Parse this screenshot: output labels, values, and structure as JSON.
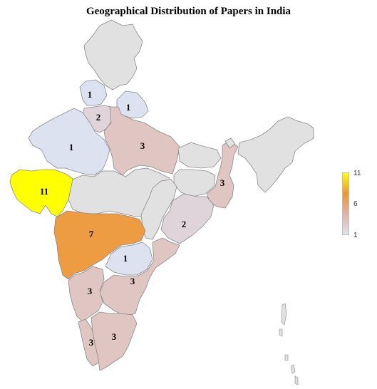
{
  "title": "Geographical Distribution of Papers in India",
  "color_scale": {
    "min": 1,
    "mid": 6,
    "max": 11,
    "colors": [
      "#dde2f1",
      "#e0b4a2",
      "#f0962a",
      "#ffff00"
    ],
    "nodata_color": "#e1e1e1",
    "ticks": [
      "11",
      "6",
      "1"
    ]
  },
  "regions": [
    {
      "name": "Jammu and Kashmir",
      "value": null
    },
    {
      "name": "Himachal Pradesh",
      "value": "1"
    },
    {
      "name": "Uttarakhand",
      "value": "1"
    },
    {
      "name": "Haryana",
      "value": "2"
    },
    {
      "name": "Rajasthan",
      "value": "1"
    },
    {
      "name": "Uttar Pradesh",
      "value": "3"
    },
    {
      "name": "Gujarat",
      "value": "11"
    },
    {
      "name": "Madhya Pradesh",
      "value": null
    },
    {
      "name": "Bihar",
      "value": null
    },
    {
      "name": "Jharkhand",
      "value": null
    },
    {
      "name": "West Bengal",
      "value": "3"
    },
    {
      "name": "Odisha",
      "value": "2"
    },
    {
      "name": "Chhattisgarh",
      "value": null
    },
    {
      "name": "Maharashtra",
      "value": "7"
    },
    {
      "name": "Telangana",
      "value": "1"
    },
    {
      "name": "Andhra Pradesh",
      "value": "3"
    },
    {
      "name": "Karnataka",
      "value": "3"
    },
    {
      "name": "Kerala",
      "value": "3"
    },
    {
      "name": "Tamil Nadu",
      "value": "3"
    },
    {
      "name": "Northeast",
      "value": null
    }
  ]
}
